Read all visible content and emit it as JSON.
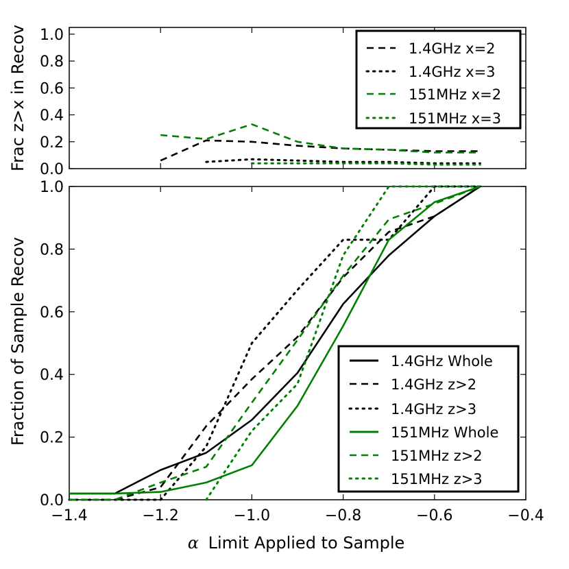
{
  "figure": {
    "xlabel_symbol": "α",
    "xlabel": "Limit Applied to Sample"
  },
  "colors": {
    "black": "#000000",
    "green": "#008000"
  },
  "chart_data": [
    {
      "id": "top",
      "type": "line",
      "ylabel": "Frac z>x in Recov",
      "xlim": [
        -1.4,
        -0.4
      ],
      "ylim": [
        0.0,
        1.05
      ],
      "xticks": [
        -1.4,
        -1.2,
        -1.0,
        -0.8,
        -0.6,
        -0.4
      ],
      "yticks": [
        0.0,
        0.2,
        0.4,
        0.6,
        0.8,
        1.0
      ],
      "ytick_labels": [
        "0.0",
        "0.2",
        "0.4",
        "0.6",
        "0.8",
        "1.0"
      ],
      "legend_position": "top-right",
      "series": [
        {
          "name": "1.4GHz x=2",
          "color": "black",
          "style": "dashed",
          "x": [
            -1.2,
            -1.1,
            -1.0,
            -0.9,
            -0.8,
            -0.7,
            -0.6,
            -0.5
          ],
          "y": [
            0.06,
            0.21,
            0.2,
            0.17,
            0.15,
            0.14,
            0.13,
            0.13
          ]
        },
        {
          "name": "1.4GHz x=3",
          "color": "black",
          "style": "dotted",
          "x": [
            -1.1,
            -1.0,
            -0.9,
            -0.8,
            -0.7,
            -0.6,
            -0.5
          ],
          "y": [
            0.05,
            0.07,
            0.06,
            0.05,
            0.05,
            0.04,
            0.04
          ]
        },
        {
          "name": "151MHz x=2",
          "color": "green",
          "style": "dashed",
          "x": [
            -1.2,
            -1.1,
            -1.0,
            -0.9,
            -0.8,
            -0.7,
            -0.6,
            -0.5
          ],
          "y": [
            0.25,
            0.22,
            0.33,
            0.2,
            0.15,
            0.14,
            0.12,
            0.12
          ]
        },
        {
          "name": "151MHz x=3",
          "color": "green",
          "style": "dotted",
          "x": [
            -1.0,
            -0.9,
            -0.8,
            -0.7,
            -0.6,
            -0.5
          ],
          "y": [
            0.04,
            0.04,
            0.04,
            0.04,
            0.03,
            0.03
          ]
        }
      ]
    },
    {
      "id": "bottom",
      "type": "line",
      "ylabel": "Fraction of Sample Recov",
      "xlabel": "α Limit Applied to Sample",
      "xlim": [
        -1.4,
        -0.4
      ],
      "ylim": [
        0.0,
        1.0
      ],
      "xticks": [
        -1.4,
        -1.2,
        -1.0,
        -0.8,
        -0.6,
        -0.4
      ],
      "xtick_labels": [
        "−1.4",
        "−1.2",
        "−1.0",
        "−0.8",
        "−0.6",
        "−0.4"
      ],
      "yticks": [
        0.0,
        0.2,
        0.4,
        0.6,
        0.8,
        1.0
      ],
      "ytick_labels": [
        "0.0",
        "0.2",
        "0.4",
        "0.6",
        "0.8",
        "1.0"
      ],
      "legend_position": "lower-right",
      "series": [
        {
          "name": "1.4GHz Whole",
          "color": "black",
          "style": "solid",
          "x": [
            -1.4,
            -1.3,
            -1.2,
            -1.1,
            -1.0,
            -0.9,
            -0.8,
            -0.7,
            -0.6,
            -0.5
          ],
          "y": [
            0.02,
            0.02,
            0.095,
            0.15,
            0.255,
            0.405,
            0.625,
            0.78,
            0.905,
            1.0
          ]
        },
        {
          "name": "1.4GHz z>2",
          "color": "black",
          "style": "dashed",
          "x": [
            -1.4,
            -1.3,
            -1.2,
            -1.1,
            -1.0,
            -0.9,
            -0.8,
            -0.7,
            -0.6,
            -0.5
          ],
          "y": [
            0.0,
            0.0,
            0.04,
            0.235,
            0.385,
            0.52,
            0.71,
            0.855,
            0.905,
            1.0
          ]
        },
        {
          "name": "1.4GHz z>3",
          "color": "black",
          "style": "dotted",
          "x": [
            -1.4,
            -1.3,
            -1.2,
            -1.1,
            -1.0,
            -0.9,
            -0.8,
            -0.7,
            -0.6,
            -0.5
          ],
          "y": [
            0.0,
            0.0,
            0.0,
            0.17,
            0.5,
            0.67,
            0.83,
            0.83,
            1.0,
            1.0
          ]
        },
        {
          "name": "151MHz Whole",
          "color": "green",
          "style": "solid",
          "x": [
            -1.4,
            -1.3,
            -1.2,
            -1.1,
            -1.0,
            -0.9,
            -0.8,
            -0.7,
            -0.6,
            -0.5
          ],
          "y": [
            0.02,
            0.02,
            0.025,
            0.055,
            0.11,
            0.3,
            0.555,
            0.83,
            0.95,
            1.0
          ]
        },
        {
          "name": "151MHz z>2",
          "color": "green",
          "style": "dashed",
          "x": [
            -1.4,
            -1.3,
            -1.2,
            -1.1,
            -1.0,
            -0.9,
            -0.8,
            -0.7,
            -0.6,
            -0.5
          ],
          "y": [
            0.0,
            0.0,
            0.055,
            0.105,
            0.31,
            0.51,
            0.715,
            0.895,
            0.945,
            1.0
          ]
        },
        {
          "name": "151MHz z>3",
          "color": "green",
          "style": "dotted",
          "x": [
            -1.1,
            -1.0,
            -0.9,
            -0.8,
            -0.7,
            -0.6,
            -0.5
          ],
          "y": [
            0.0,
            0.22,
            0.37,
            0.78,
            1.0,
            1.0,
            1.0
          ]
        }
      ]
    }
  ]
}
